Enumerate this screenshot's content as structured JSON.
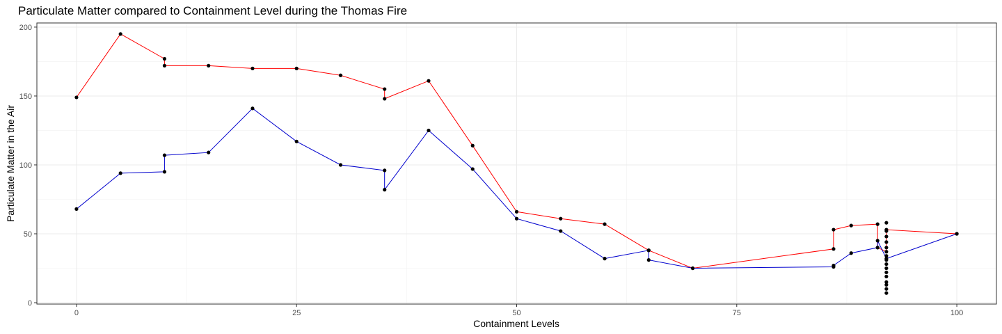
{
  "chart_data": {
    "type": "line",
    "title": "Particulate Matter compared to Containment Level during the Thomas Fire",
    "xlabel": "Containment Levels",
    "ylabel": "Particulate Matter in the Air",
    "xlim": [
      -4.5,
      104.5
    ],
    "ylim": [
      -1,
      203
    ],
    "x_ticks": [
      0,
      25,
      50,
      75,
      100
    ],
    "y_ticks": [
      0,
      50,
      100,
      150,
      200
    ],
    "grid": true,
    "legend": "none",
    "series": [
      {
        "color": "#ff0000",
        "points": [
          [
            0,
            149
          ],
          [
            5,
            195
          ],
          [
            10,
            177
          ],
          [
            10,
            172
          ],
          [
            15,
            172
          ],
          [
            20,
            170
          ],
          [
            25,
            170
          ],
          [
            30,
            165
          ],
          [
            35,
            155
          ],
          [
            35,
            148
          ],
          [
            40,
            161
          ],
          [
            45,
            114
          ],
          [
            50,
            66
          ],
          [
            55,
            61
          ],
          [
            60,
            57
          ],
          [
            65,
            38
          ],
          [
            70,
            25
          ],
          [
            86,
            39
          ],
          [
            86,
            53
          ],
          [
            88,
            56
          ],
          [
            91,
            57
          ],
          [
            91,
            40
          ],
          [
            92,
            37
          ],
          [
            92,
            53
          ],
          [
            100,
            50
          ]
        ]
      },
      {
        "color": "#0000cd",
        "points": [
          [
            0,
            68
          ],
          [
            5,
            94
          ],
          [
            10,
            95
          ],
          [
            10,
            107
          ],
          [
            15,
            109
          ],
          [
            20,
            141
          ],
          [
            25,
            117
          ],
          [
            30,
            100
          ],
          [
            35,
            96
          ],
          [
            35,
            82
          ],
          [
            40,
            125
          ],
          [
            45,
            97
          ],
          [
            50,
            61
          ],
          [
            55,
            52
          ],
          [
            60,
            32
          ],
          [
            65,
            38
          ],
          [
            65,
            31
          ],
          [
            70,
            25
          ],
          [
            86,
            26
          ],
          [
            86,
            27
          ],
          [
            88,
            36
          ],
          [
            91,
            40
          ],
          [
            91,
            45
          ],
          [
            92,
            32
          ],
          [
            100,
            50
          ]
        ]
      }
    ],
    "extra_points": [
      [
        92,
        7
      ],
      [
        92,
        10
      ],
      [
        92,
        13
      ],
      [
        92,
        15
      ],
      [
        92,
        19
      ],
      [
        92,
        22
      ],
      [
        92,
        25
      ],
      [
        92,
        28
      ],
      [
        92,
        31
      ],
      [
        92,
        34
      ],
      [
        92,
        40
      ],
      [
        92,
        44
      ],
      [
        92,
        48
      ],
      [
        92,
        52
      ],
      [
        92,
        58
      ]
    ]
  }
}
